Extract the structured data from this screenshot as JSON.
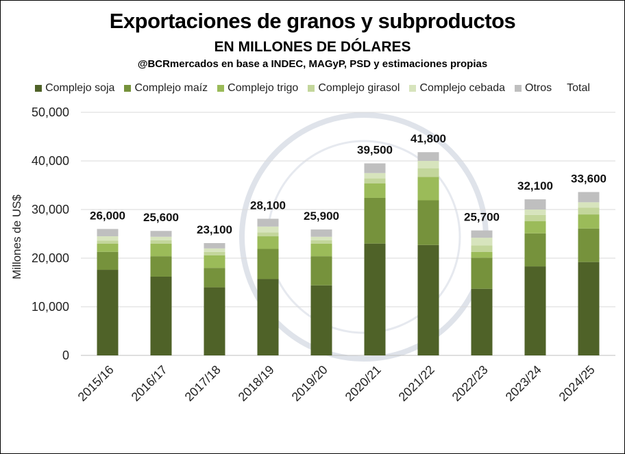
{
  "chart_data": {
    "type": "bar",
    "stacked": true,
    "title": "Exportaciones de granos y subproductos",
    "subtitle": "EN MILLONES DE DÓLARES",
    "source": "@BCRmercados en base a INDEC, MAGyP, PSD y estimaciones propias",
    "ylabel": "Millones de US$",
    "xlabel": "",
    "ylim": [
      0,
      50000
    ],
    "yticks": [
      "0",
      "10,000",
      "20,000",
      "30,000",
      "40,000",
      "50,000"
    ],
    "grid": true,
    "legend_position": "top",
    "categories": [
      "2015/16",
      "2016/17",
      "2017/18",
      "2018/19",
      "2019/20",
      "2020/21",
      "2021/22",
      "2022/23",
      "2023/24",
      "2024/25"
    ],
    "series": [
      {
        "name": "Complejo soja",
        "color": "#4f6228",
        "values": [
          17600,
          16200,
          14000,
          15700,
          14400,
          23000,
          22700,
          13700,
          18300,
          19200
        ]
      },
      {
        "name": "Complejo maíz",
        "color": "#76923c",
        "values": [
          3700,
          4200,
          4000,
          6200,
          6000,
          9400,
          9200,
          6400,
          6800,
          6900
        ]
      },
      {
        "name": "Complejo trigo",
        "color": "#9bbb59",
        "values": [
          1700,
          2600,
          2600,
          2600,
          2600,
          3000,
          4800,
          1200,
          2500,
          2900
        ]
      },
      {
        "name": "Complejo girasol",
        "color": "#c3d69b",
        "values": [
          600,
          700,
          700,
          800,
          700,
          1000,
          1800,
          1300,
          1300,
          1400
        ]
      },
      {
        "name": "Complejo cebada",
        "color": "#d7e4bd",
        "values": [
          900,
          700,
          700,
          1200,
          700,
          1100,
          1500,
          1600,
          1100,
          1100
        ]
      },
      {
        "name": "Otros",
        "color": "#bfbfbf",
        "values": [
          1500,
          1200,
          1100,
          1600,
          1500,
          2000,
          1800,
          1500,
          2100,
          2100
        ]
      }
    ],
    "total_label": "Total",
    "totals": [
      "26,000",
      "25,600",
      "23,100",
      "28,100",
      "25,900",
      "39,500",
      "41,800",
      "25,700",
      "32,100",
      "33,600"
    ]
  }
}
